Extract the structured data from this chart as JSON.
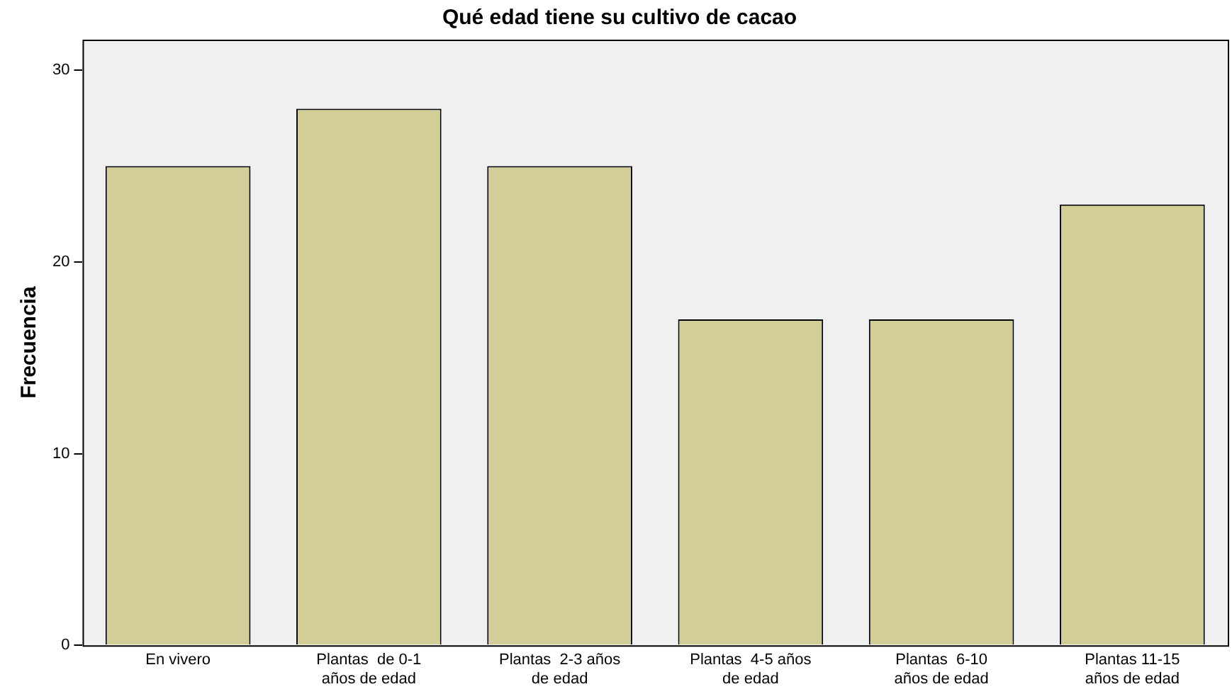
{
  "chart_data": {
    "type": "bar",
    "title": "Qué edad tiene su cultivo de cacao",
    "ylabel": "Frecuencia",
    "categories": [
      "En vivero",
      "Plantas  de 0-1\naños de edad",
      "Plantas  2-3 años\nde edad",
      "Plantas  4-5 años\nde edad",
      "Plantas  6-10\naños de edad",
      "Plantas 11-15\naños de edad"
    ],
    "values": [
      25,
      28,
      25,
      17,
      17,
      23
    ],
    "color": "#d3ce97",
    "ylim": [
      0,
      31.6
    ],
    "yticks": [
      0,
      10,
      20,
      30
    ],
    "grid": false,
    "legend": false
  }
}
